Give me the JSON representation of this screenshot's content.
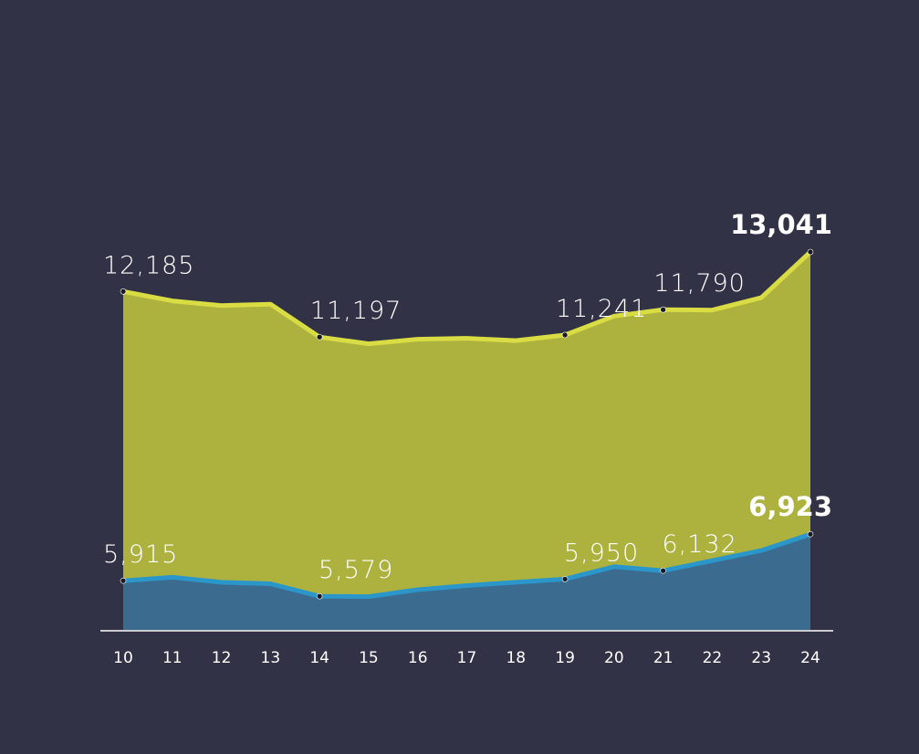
{
  "chart_data": {
    "type": "area",
    "x": [
      "10",
      "11",
      "12",
      "13",
      "14",
      "15",
      "16",
      "17",
      "18",
      "19",
      "20",
      "21",
      "22",
      "23",
      "24"
    ],
    "series": [
      {
        "values": [
          12185,
          11980,
          11880,
          11910,
          11197,
          11050,
          11150,
          11170,
          11120,
          11241,
          11650,
          11790,
          11780,
          12050,
          13041
        ],
        "color": "#adb23f",
        "line_color": "#d9dd43"
      },
      {
        "values": [
          5915,
          5990,
          5880,
          5850,
          5579,
          5570,
          5720,
          5810,
          5880,
          5950,
          6220,
          6132,
          6350,
          6570,
          6923
        ],
        "color": "#3b6c8f",
        "line_color": "#2b96c9"
      }
    ],
    "labels": [
      {
        "series": 0,
        "index": 0,
        "text": "12,185",
        "bold": false
      },
      {
        "series": 0,
        "index": 4,
        "text": "11,197",
        "bold": false
      },
      {
        "series": 0,
        "index": 9,
        "text": "11,241",
        "bold": false
      },
      {
        "series": 0,
        "index": 11,
        "text": "11,790",
        "bold": false
      },
      {
        "series": 0,
        "index": 14,
        "text": "13,041",
        "bold": true
      },
      {
        "series": 1,
        "index": 0,
        "text": "5,915",
        "bold": false
      },
      {
        "series": 1,
        "index": 4,
        "text": "5,579",
        "bold": false
      },
      {
        "series": 1,
        "index": 9,
        "text": "5,950",
        "bold": false
      },
      {
        "series": 1,
        "index": 11,
        "text": "6,132",
        "bold": false
      },
      {
        "series": 1,
        "index": 14,
        "text": "6,923",
        "bold": true
      }
    ],
    "ylim": [
      4850,
      13041
    ],
    "grid": false,
    "legend": "none",
    "axis_color": "#ffffff",
    "background": "#313245"
  }
}
